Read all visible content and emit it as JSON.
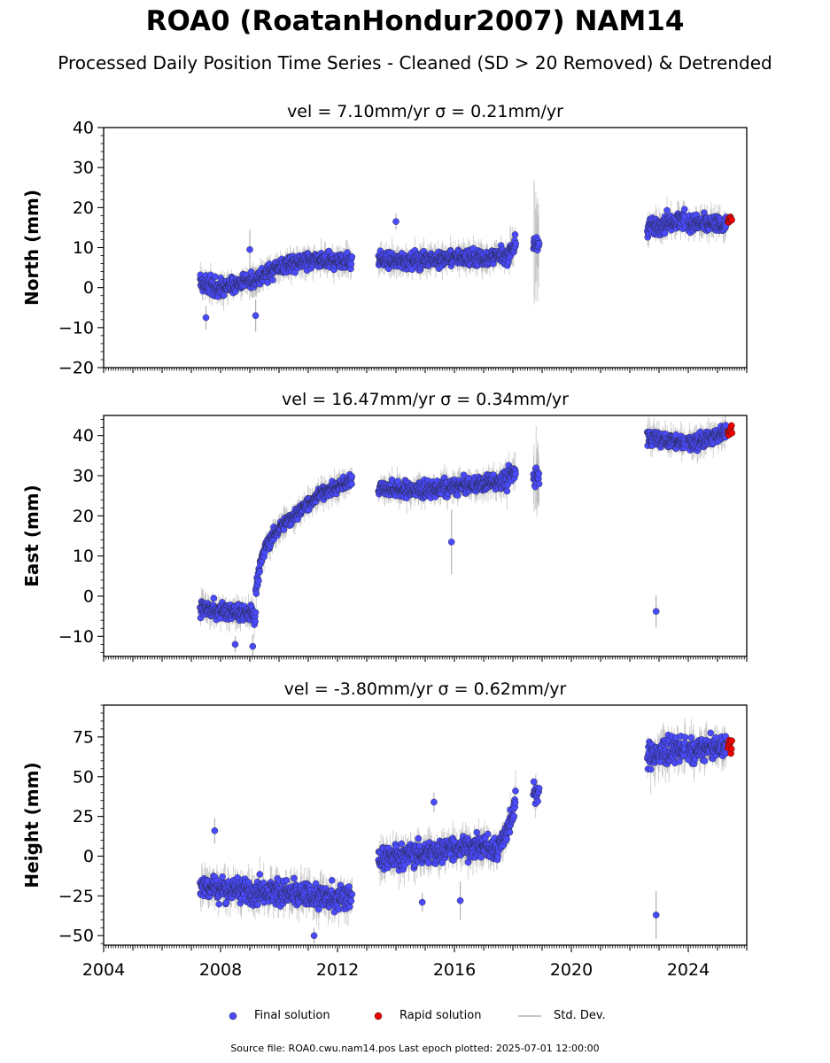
{
  "figure": {
    "title": "ROA0 (RoatanHondur2007) NAM14",
    "subtitle": "Processed Daily Position Time Series - Cleaned (SD > 20 Removed) & Detrended",
    "source_note": "Source file: ROA0.cwu.nam14.pos  Last epoch plotted: 2025-07-01 12:00:00"
  },
  "legend": {
    "final": "Final solution",
    "rapid": "Rapid solution",
    "stddev": "Std. Dev."
  },
  "colors": {
    "final": "#4a4aff",
    "rapid": "#ee0000",
    "stddev": "#b3b3b3",
    "marker_edge": "#222222"
  },
  "chart_data": [
    {
      "type": "scatter",
      "title": "vel = 7.10mm/yr   σ = 0.21mm/yr",
      "xlabel": "",
      "ylabel": "North (mm)",
      "xlim": [
        2004.0,
        2026.0
      ],
      "ylim": [
        -20,
        40
      ],
      "yticks": [
        -20,
        -10,
        0,
        10,
        20,
        30,
        40
      ],
      "ytick_labels": [
        "−20",
        "−10",
        "0",
        "10",
        "20",
        "30",
        "40"
      ],
      "x_label_ticks": [],
      "grid": false,
      "series": [
        {
          "name": "Final solution",
          "kind": "final",
          "segments": [
            {
              "x": [
                2007.3,
                2007.6,
                2008.0,
                2008.4,
                2008.8,
                2009.2
              ],
              "y": [
                1,
                0.5,
                0,
                0.5,
                1.5,
                2
              ],
              "noise": 2.2,
              "sd": 3
            },
            {
              "x": [
                2009.2,
                2009.6,
                2010.0,
                2010.5,
                2011.0,
                2011.5,
                2012.0,
                2012.5
              ],
              "y": [
                2,
                3.5,
                5.5,
                6,
                6.5,
                6.8,
                6.5,
                7
              ],
              "noise": 2.0,
              "sd": 3
            },
            {
              "x": [
                2013.4,
                2014.0,
                2015.0,
                2016.0,
                2017.0,
                2017.8
              ],
              "y": [
                7,
                6.5,
                7,
                7.5,
                7.5,
                8
              ],
              "noise": 2.0,
              "sd": 3
            },
            {
              "x": [
                2017.8,
                2018.1
              ],
              "y": [
                8,
                11
              ],
              "noise": 2.2,
              "sd": 4
            },
            {
              "x": [
                2018.7,
                2018.9
              ],
              "y": [
                10.5,
                10.5
              ],
              "noise": 2.0,
              "sd": 12
            },
            {
              "x": [
                2022.6,
                2023.2,
                2023.9
              ],
              "y": [
                15,
                16,
                17
              ],
              "noise": 2.2,
              "sd": 3
            },
            {
              "x": [
                2024.0,
                2024.6,
                2025.3
              ],
              "y": [
                16,
                16,
                15.5
              ],
              "noise": 2.0,
              "sd": 3
            }
          ],
          "outliers": [
            {
              "x": 2014.0,
              "y": 16.5,
              "sd": 2
            },
            {
              "x": 2007.5,
              "y": -7.5,
              "sd": 3
            },
            {
              "x": 2009.2,
              "y": -7,
              "sd": 4
            },
            {
              "x": 2009.0,
              "y": 9.5,
              "sd": 5
            }
          ]
        },
        {
          "name": "Rapid solution",
          "kind": "rapid",
          "segments": [
            {
              "x": [
                2025.35,
                2025.5
              ],
              "y": [
                17,
                17
              ],
              "noise": 0.8,
              "sd": 0
            }
          ],
          "outliers": []
        }
      ]
    },
    {
      "type": "scatter",
      "title": "vel = 16.47mm/yr   σ = 0.34mm/yr",
      "xlabel": "",
      "ylabel": "East (mm)",
      "xlim": [
        2004.0,
        2026.0
      ],
      "ylim": [
        -15,
        45
      ],
      "yticks": [
        -10,
        0,
        10,
        20,
        30,
        40
      ],
      "ytick_labels": [
        "−10",
        "0",
        "10",
        "20",
        "30",
        "40"
      ],
      "x_label_ticks": [],
      "grid": false,
      "series": [
        {
          "name": "Final solution",
          "kind": "final",
          "segments": [
            {
              "x": [
                2007.3,
                2008.0,
                2008.6,
                2009.2
              ],
              "y": [
                -3,
                -3.5,
                -4,
                -4.5
              ],
              "noise": 2.0,
              "sd": 3
            },
            {
              "x": [
                2009.2,
                2009.35,
                2009.6,
                2010.0,
                2010.5,
                2011.0,
                2011.5,
                2012.0,
                2012.5
              ],
              "y": [
                1,
                8,
                13,
                17,
                20,
                23,
                26,
                27,
                29
              ],
              "noise": 1.5,
              "sd": 3
            },
            {
              "x": [
                2013.4,
                2014.0,
                2015.0,
                2016.0,
                2017.0,
                2017.8
              ],
              "y": [
                27,
                26.5,
                26.5,
                27,
                28,
                29
              ],
              "noise": 2.0,
              "sd": 3
            },
            {
              "x": [
                2017.8,
                2018.1
              ],
              "y": [
                29,
                31
              ],
              "noise": 2.5,
              "sd": 4
            },
            {
              "x": [
                2018.7,
                2018.9
              ],
              "y": [
                30,
                30
              ],
              "noise": 3.0,
              "sd": 8
            },
            {
              "x": [
                2022.6,
                2023.2,
                2023.9
              ],
              "y": [
                40,
                39,
                38
              ],
              "noise": 2.0,
              "sd": 3
            },
            {
              "x": [
                2024.0,
                2024.6,
                2025.3
              ],
              "y": [
                38,
                39,
                41
              ],
              "noise": 2.0,
              "sd": 3
            }
          ],
          "outliers": [
            {
              "x": 2022.9,
              "y": -3.8,
              "sd": 4
            },
            {
              "x": 2015.9,
              "y": 13.5,
              "sd": 8
            },
            {
              "x": 2009.1,
              "y": -12.5,
              "sd": 3
            },
            {
              "x": 2008.5,
              "y": -12,
              "sd": 2
            }
          ]
        },
        {
          "name": "Rapid solution",
          "kind": "rapid",
          "segments": [
            {
              "x": [
                2025.35,
                2025.5
              ],
              "y": [
                41,
                41.5
              ],
              "noise": 1.2,
              "sd": 0
            }
          ],
          "outliers": []
        }
      ]
    },
    {
      "type": "scatter",
      "title": "vel = -3.80mm/yr   σ = 0.62mm/yr",
      "xlabel": "",
      "ylabel": "Height (mm)",
      "xlim": [
        2004.0,
        2026.0
      ],
      "ylim": [
        -56,
        95
      ],
      "yticks": [
        -50,
        -25,
        0,
        25,
        50,
        75
      ],
      "ytick_labels": [
        "−50",
        "−25",
        "0",
        "25",
        "50",
        "75"
      ],
      "x_label_ticks": [
        2004,
        2008,
        2012,
        2016,
        2020,
        2024
      ],
      "grid": false,
      "series": [
        {
          "name": "Final solution",
          "kind": "final",
          "segments": [
            {
              "x": [
                2007.3,
                2008.0,
                2009.0,
                2010.0,
                2011.0,
                2012.0,
                2012.5
              ],
              "y": [
                -18,
                -20,
                -22,
                -23,
                -25,
                -26,
                -25
              ],
              "noise": 7.5,
              "sd": 10
            },
            {
              "x": [
                2013.4,
                2014.0,
                2015.0,
                2016.0,
                2017.0,
                2017.5
              ],
              "y": [
                -2,
                0,
                2,
                5,
                6,
                3
              ],
              "noise": 7.0,
              "sd": 10
            },
            {
              "x": [
                2017.5,
                2017.9,
                2018.1
              ],
              "y": [
                5,
                20,
                35
              ],
              "noise": 7.0,
              "sd": 10
            },
            {
              "x": [
                2018.7,
                2018.9
              ],
              "y": [
                38,
                42
              ],
              "noise": 8.0,
              "sd": 8
            },
            {
              "x": [
                2022.6,
                2023.2,
                2023.9
              ],
              "y": [
                62,
                66,
                68
              ],
              "noise": 8.0,
              "sd": 12
            },
            {
              "x": [
                2024.0,
                2024.6,
                2025.3
              ],
              "y": [
                65,
                67,
                69
              ],
              "noise": 7.0,
              "sd": 10
            }
          ],
          "outliers": [
            {
              "x": 2022.9,
              "y": -37,
              "sd": 15
            },
            {
              "x": 2007.8,
              "y": 16,
              "sd": 8
            },
            {
              "x": 2015.3,
              "y": 34,
              "sd": 6
            },
            {
              "x": 2016.2,
              "y": -28,
              "sd": 12
            },
            {
              "x": 2011.2,
              "y": -50,
              "sd": 5
            },
            {
              "x": 2014.9,
              "y": -29,
              "sd": 6
            }
          ]
        },
        {
          "name": "Rapid solution",
          "kind": "rapid",
          "segments": [
            {
              "x": [
                2025.35,
                2025.5
              ],
              "y": [
                68,
                70
              ],
              "noise": 4.5,
              "sd": 0
            }
          ],
          "outliers": []
        }
      ]
    }
  ]
}
